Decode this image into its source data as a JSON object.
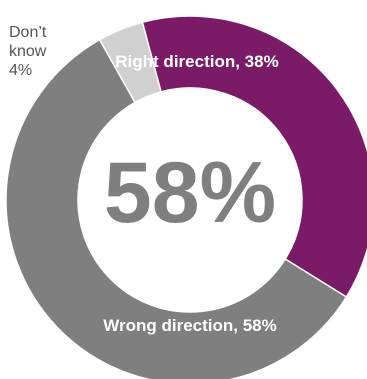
{
  "chart_data": {
    "type": "pie",
    "donut": true,
    "center_label": "58%",
    "slices": [
      {
        "label": "Right direction, 38%",
        "value": 38,
        "color": "#7b1b68"
      },
      {
        "label": "Wrong direction, 58%",
        "value": 58,
        "color": "#7f7f7f"
      },
      {
        "label": "Don’t know 4%",
        "value": 4,
        "color": "#d0d0d0"
      }
    ],
    "dont_know_label_lines": [
      "Don’t",
      "know",
      "4%"
    ]
  }
}
